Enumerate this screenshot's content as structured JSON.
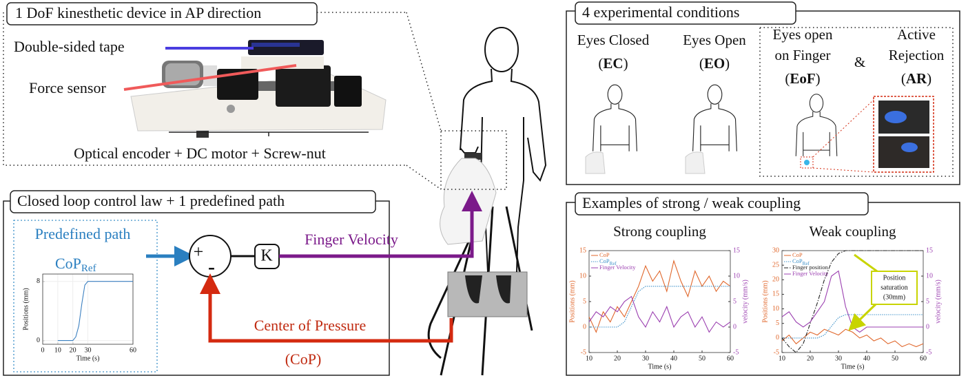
{
  "device": {
    "title": "1 DoF kinesthetic device in AP direction",
    "tape_label": "Double-sided tape",
    "sensor_label": "Force sensor",
    "actuator_label": "Optical encoder + DC motor + Screw-nut"
  },
  "control": {
    "title": "Closed loop control law + 1 predefined path",
    "predefined_path": "Predefined path",
    "cop_ref": {
      "main": "CoP",
      "sub": "Ref"
    },
    "plus": "+",
    "minus": "-",
    "gain": "K",
    "finger_velocity": "Finger Velocity",
    "center_of_pressure": "Center of Pressure",
    "cop_abbrev": "(CoP)",
    "chart": {
      "type": "line",
      "x": [
        10,
        20,
        22,
        24,
        26,
        28,
        30,
        40,
        50,
        60
      ],
      "values": [
        0,
        0,
        0.5,
        2,
        5,
        7.5,
        8,
        8,
        8,
        8
      ],
      "color": "#3a7fc0",
      "xlim": [
        0,
        60
      ],
      "xticks": [
        0,
        10,
        20,
        30,
        60
      ],
      "ylim": [
        -0.5,
        9
      ],
      "yticks": [
        0,
        8
      ],
      "xlabel": "Time (s)",
      "ylabel": "Positions (mm)",
      "grid": true
    }
  },
  "conditions": {
    "title": "4 experimental conditions",
    "amp": "&",
    "items": [
      {
        "lines": [
          "Eyes Closed"
        ],
        "abbrev": {
          "pre": "(",
          "bold": "EC",
          "post": ")"
        }
      },
      {
        "lines": [
          "Eyes Open"
        ],
        "abbrev": {
          "pre": "(",
          "bold": "EO",
          "post": ")"
        }
      },
      {
        "lines": [
          "Eyes open",
          "on Finger"
        ],
        "abbrev": {
          "pre": "(",
          "bold": "EoF",
          "post": ")"
        }
      },
      {
        "lines": [
          "Active",
          "Rejection"
        ],
        "abbrev": {
          "pre": "(",
          "bold": "AR",
          "post": ")"
        }
      }
    ]
  },
  "coupling": {
    "title": "Examples of strong / weak coupling",
    "charts": [
      {
        "type": "line",
        "title": "Strong coupling",
        "x": [
          10,
          12.5,
          15,
          17.5,
          20,
          22.5,
          25,
          27.5,
          30,
          32.5,
          35,
          37.5,
          40,
          42.5,
          45,
          47.5,
          50,
          52.5,
          55,
          57.5,
          60
        ],
        "xlim": [
          10,
          60
        ],
        "xticks": [
          10,
          20,
          30,
          40,
          50,
          60
        ],
        "ylim": [
          -5,
          15
        ],
        "yticks": [
          -5,
          0,
          5,
          10,
          15
        ],
        "y2lim": [
          -5,
          15
        ],
        "y2ticks": [
          -5,
          0,
          5,
          10,
          15
        ],
        "xlabel": "Time (s)",
        "ylabel": "Positions (mm)",
        "y2label": "velocity (mm/s)",
        "legend": true,
        "series": [
          {
            "name": "CoP",
            "color": "#e0662a",
            "style": "solid",
            "values": [
              2,
              -1,
              3,
              1,
              4,
              2,
              5,
              8,
              12,
              9,
              11,
              7,
              13,
              9,
              6,
              11,
              8,
              10,
              7,
              9,
              8
            ]
          },
          {
            "name": "CoP",
            "name_sub": "Ref",
            "color": "#3a8fc8",
            "style": "dotted",
            "values": [
              0,
              0,
              0,
              0,
              0,
              1,
              4,
              7,
              8,
              8,
              8,
              8,
              8,
              8,
              8,
              8,
              8,
              8,
              8,
              8,
              8
            ]
          },
          {
            "name": "Finger Velocity",
            "color": "#9b3fb0",
            "style": "solid",
            "axis": "y2",
            "values": [
              1,
              3,
              2,
              4,
              3,
              5,
              6,
              2,
              0,
              3,
              1,
              4,
              0,
              2,
              3,
              0,
              2,
              -1,
              1,
              0,
              1
            ]
          }
        ]
      },
      {
        "type": "line",
        "title": "Weak coupling",
        "x": [
          10,
          12.5,
          15,
          17.5,
          20,
          22.5,
          25,
          27.5,
          30,
          32.5,
          35,
          37.5,
          40,
          42.5,
          45,
          47.5,
          50,
          52.5,
          55,
          57.5,
          60
        ],
        "xlim": [
          10,
          60
        ],
        "xticks": [
          10,
          20,
          30,
          40,
          50,
          60
        ],
        "ylim": [
          -5,
          30
        ],
        "yticks": [
          -5,
          0,
          5,
          10,
          15,
          20,
          25,
          30
        ],
        "y2lim": [
          -5,
          15
        ],
        "y2ticks": [
          -5,
          0,
          5,
          10,
          15
        ],
        "xlabel": "Time (s)",
        "ylabel": "Positions (mm)",
        "y2label": "velocity (mm/s)",
        "legend": true,
        "annotation": [
          "Position",
          "saturation",
          "(30mm)"
        ],
        "series": [
          {
            "name": "CoP",
            "color": "#e0662a",
            "style": "solid",
            "values": [
              -1,
              1,
              -2,
              0,
              2,
              1,
              3,
              2,
              1,
              3,
              2,
              0,
              1,
              -1,
              0,
              -2,
              -1,
              -3,
              -2,
              -3,
              -2
            ]
          },
          {
            "name": "CoP",
            "name_sub": "Ref",
            "color": "#3a8fc8",
            "style": "dotted",
            "values": [
              0,
              0,
              0,
              0,
              0,
              0,
              1,
              4,
              7,
              8,
              8,
              8,
              8,
              8,
              8,
              8,
              8,
              8,
              8,
              8,
              8
            ]
          },
          {
            "name": "Finger position",
            "color": "#222222",
            "style": "dashdot",
            "values": [
              0,
              -3,
              -5,
              -2,
              5,
              12,
              20,
              26,
              29,
              30,
              30,
              30,
              30,
              30,
              30,
              30,
              30,
              30,
              30,
              30,
              30
            ]
          },
          {
            "name": "Finger Velocity",
            "color": "#9b3fb0",
            "style": "solid",
            "axis": "y2",
            "values": [
              2,
              3,
              1,
              0,
              1,
              3,
              5,
              10,
              11,
              4,
              0,
              -1,
              0,
              0,
              0,
              0,
              0,
              0,
              0,
              0,
              0
            ]
          }
        ]
      }
    ]
  }
}
